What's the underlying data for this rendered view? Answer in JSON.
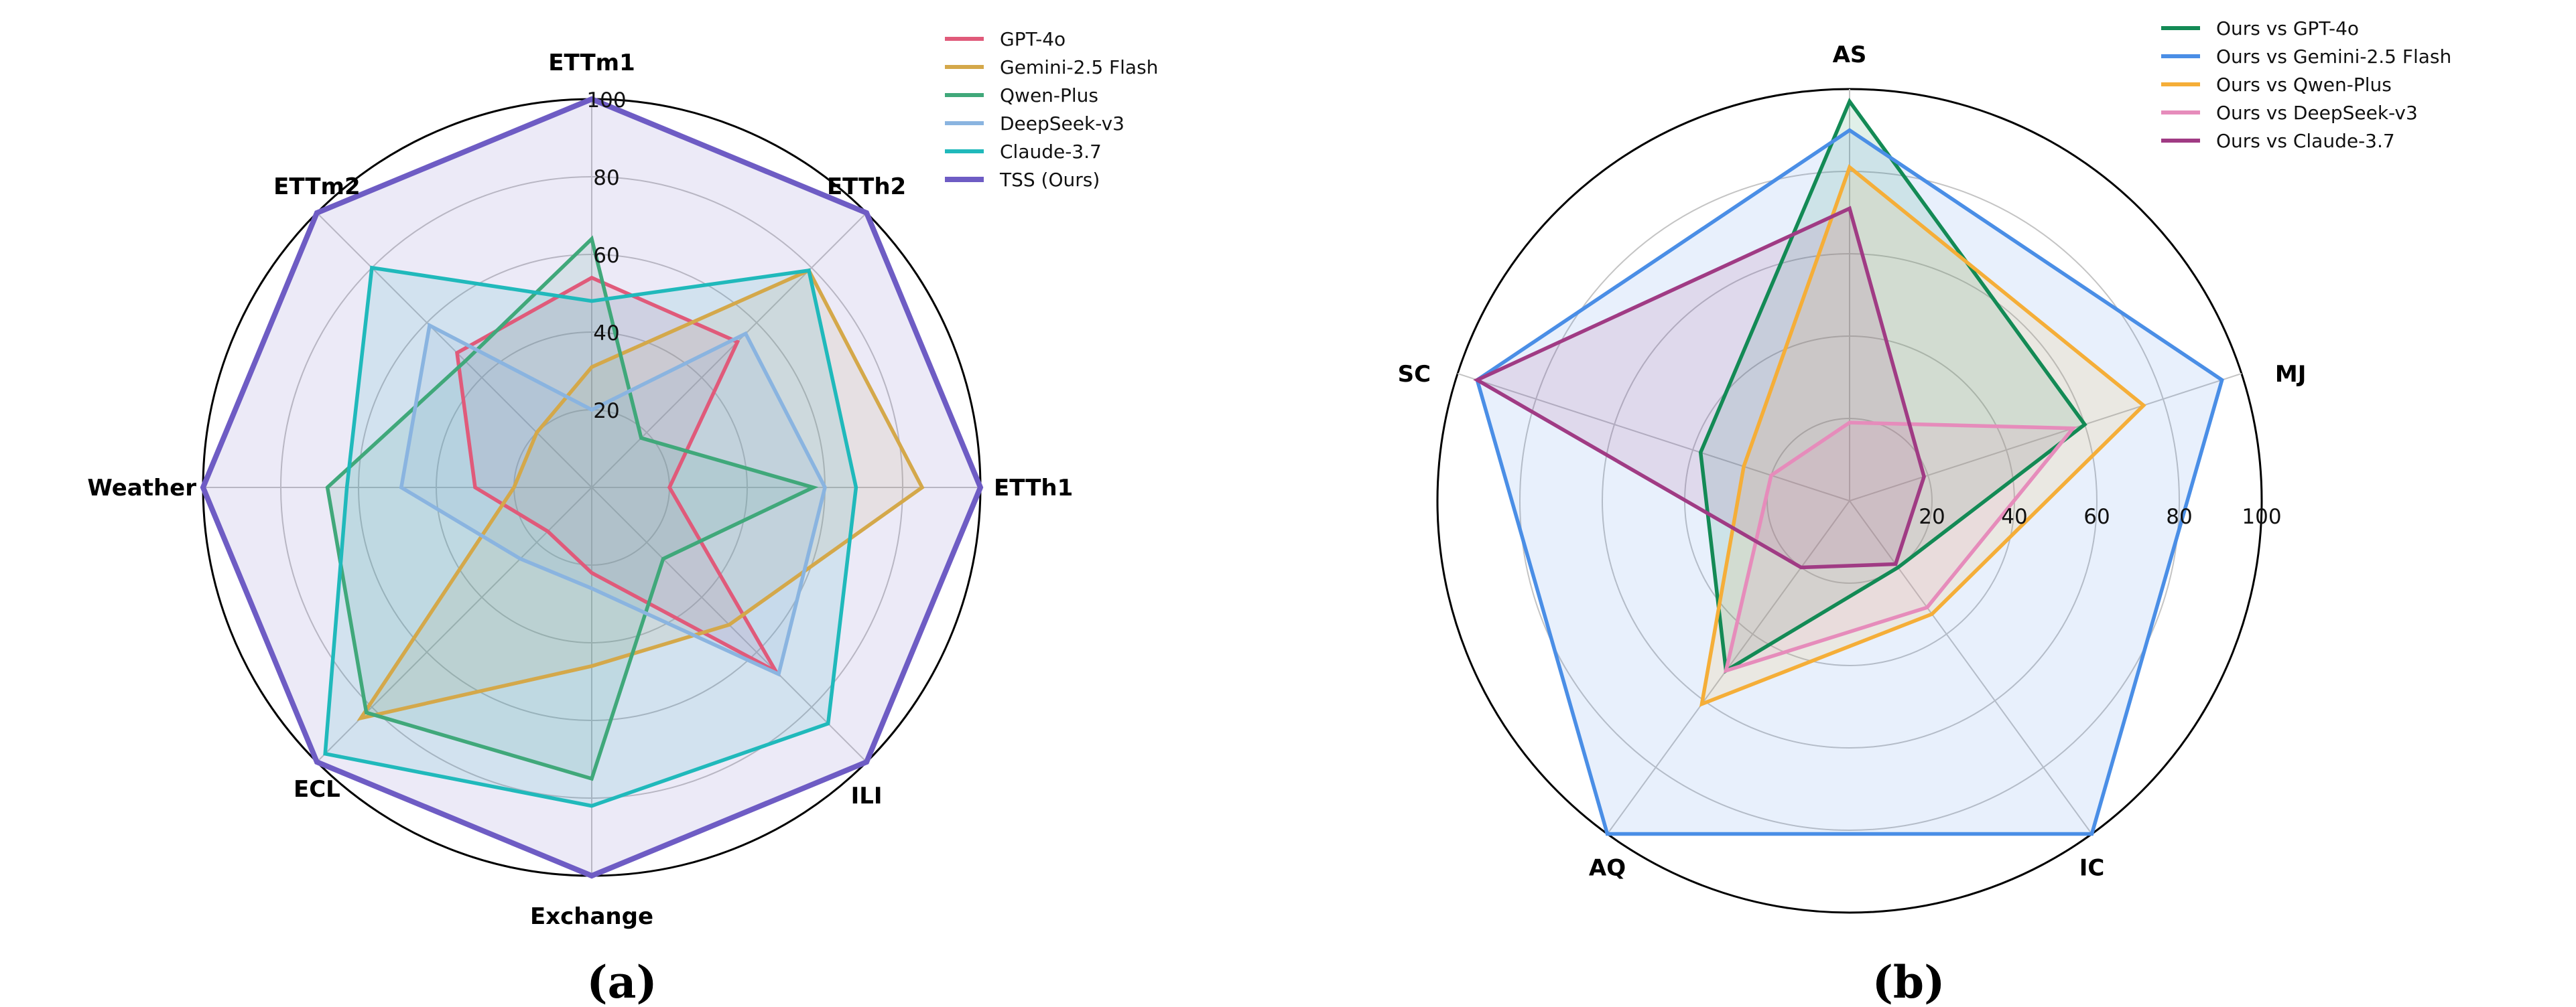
{
  "chart_data": [
    {
      "type": "radar",
      "panel_label": "(a)",
      "axes": [
        "ETTm1",
        "ETTh2",
        "ETTh1",
        "ILI",
        "Exchange",
        "ECL",
        "Weather",
        "ETTm2"
      ],
      "rlim": [
        0,
        100
      ],
      "rticks": [
        "20",
        "40",
        "60",
        "80",
        "100"
      ],
      "grid": true,
      "legend": "top-right",
      "series": [
        {
          "name": "GPT-4o",
          "color": "#e05a7a",
          "values": [
            54,
            53,
            20,
            67,
            22,
            16,
            30,
            49
          ]
        },
        {
          "name": "Gemini-2.5 Flash",
          "color": "#d4a84a",
          "values": [
            31,
            79,
            85,
            50,
            46,
            84,
            20,
            20
          ]
        },
        {
          "name": "Qwen-Plus",
          "color": "#40a87a",
          "values": [
            64,
            18,
            57,
            26,
            75,
            82,
            68,
            46
          ]
        },
        {
          "name": "DeepSeek-v3",
          "color": "#8ab4e0",
          "values": [
            20,
            56,
            60,
            68,
            26,
            26,
            49,
            59
          ]
        },
        {
          "name": "Claude-3.7",
          "color": "#20b9bb",
          "values": [
            48,
            79,
            68,
            86,
            82,
            97,
            63,
            80
          ]
        },
        {
          "name": "TSS (Ours)",
          "color": "#6e5cc4",
          "values": [
            100,
            100,
            100,
            100,
            100,
            100,
            100,
            100
          ]
        }
      ]
    },
    {
      "type": "radar",
      "panel_label": "(b)",
      "axes": [
        "AS",
        "MJ",
        "IC",
        "AQ",
        "SC"
      ],
      "rlim": [
        0,
        100
      ],
      "rticks": [
        "20",
        "40",
        "60",
        "80",
        "100"
      ],
      "grid": true,
      "legend": "top-right",
      "series": [
        {
          "name": "Ours vs GPT-4o",
          "color": "#138a55",
          "values": [
            97,
            60,
            20,
            51,
            38
          ]
        },
        {
          "name": "Ours vs Gemini-2.5 Flash",
          "color": "#4a8ee6",
          "values": [
            90,
            95,
            100,
            100,
            95
          ]
        },
        {
          "name": "Ours vs Qwen-Plus",
          "color": "#f5ae38",
          "values": [
            81,
            75,
            34,
            61,
            27
          ]
        },
        {
          "name": "Ours vs DeepSeek-v3",
          "color": "#e68cbb",
          "values": [
            19,
            57,
            32,
            51,
            20
          ]
        },
        {
          "name": "Ours vs Claude-3.7",
          "color": "#a03b84",
          "values": [
            71,
            19,
            19,
            20,
            95
          ]
        }
      ]
    }
  ]
}
